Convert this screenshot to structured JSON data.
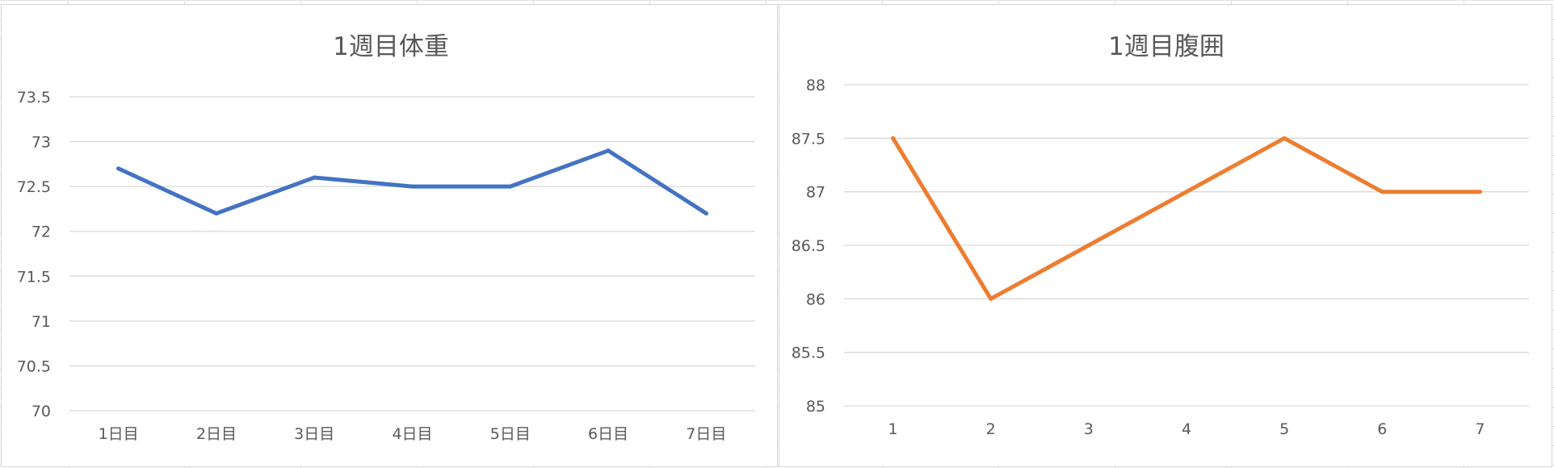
{
  "chart_data": [
    {
      "type": "line",
      "title": "1週目体重",
      "categories": [
        "1日目",
        "2日目",
        "3日目",
        "4日目",
        "5日目",
        "6日目",
        "7日目"
      ],
      "series": [
        {
          "values": [
            72.7,
            72.2,
            72.6,
            72.5,
            72.5,
            72.9,
            72.2
          ],
          "color": "#4472c4"
        }
      ],
      "ylim": [
        70,
        73.5
      ],
      "yticks": [
        "70",
        "70.5",
        "71",
        "71.5",
        "72",
        "72.5",
        "73",
        "73.5"
      ],
      "grid": true,
      "legend": "none"
    },
    {
      "type": "line",
      "title": "1週目腹囲",
      "categories": [
        "1",
        "2",
        "3",
        "4",
        "5",
        "6",
        "7"
      ],
      "series": [
        {
          "values": [
            87.5,
            86,
            86.5,
            87,
            87.5,
            87,
            87
          ],
          "color": "#ed7d31"
        }
      ],
      "ylim": [
        85,
        88
      ],
      "yticks": [
        "85",
        "85.5",
        "86",
        "86.5",
        "87",
        "87.5",
        "88"
      ],
      "grid": true,
      "legend": "none"
    }
  ]
}
